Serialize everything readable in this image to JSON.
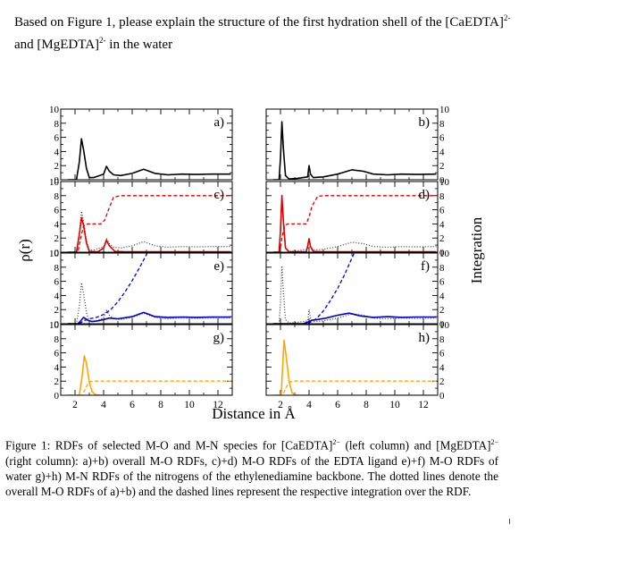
{
  "question": {
    "prefix": "Based on Figure 1, please  explain the structure of the first hydration shell of the [CaEDTA]",
    "charge1": "2-",
    "middle": "and [MgEDTA]",
    "charge2": "2-",
    "suffix": " in the water"
  },
  "caption": {
    "part1": "Figure 1:  RDFs of selected M-O and M-N species for [CaEDTA]",
    "charge1": "2−",
    "part2": " (left column) and [MgEDTA]",
    "charge2": "2−",
    "part3": " (right column): a)+b) overall M-O RDFs, c)+d) M-O RDFs of the EDTA ligand e)+f) M-O RDFs of water g)+h) M-N RDFs of the nitrogens of the ethylenediamine backbone. The dotted lines denote the overall M-O RDFs of a)+b) and the dashed lines represent the respective integration over the RDF."
  },
  "chart_data": {
    "type": "line",
    "title": "",
    "xlabel": "Distance in Å",
    "ylabel_left": "ρ(r)",
    "ylabel_right": "Integration",
    "xlim": [
      1,
      13
    ],
    "ylim": [
      0,
      10
    ],
    "x_ticks": [
      "2",
      "4",
      "6",
      "8",
      "10",
      "12"
    ],
    "y_ticks": [
      "0",
      "2",
      "4",
      "6",
      "8",
      "10"
    ],
    "colors": {
      "black": "#000000",
      "red": "#dd0000",
      "blue": "#0000cc",
      "orange": "#ffa500",
      "dotted": "#444444"
    },
    "panels": [
      {
        "label": "a)",
        "column": "[CaEDTA]2−",
        "series": [
          {
            "name": "overall M-O RDF",
            "style": "solid",
            "color": "#000000",
            "x": [
              1.5,
              2.1,
              2.3,
              2.45,
              2.6,
              2.8,
              3.0,
              3.3,
              3.6,
              4.0,
              4.2,
              4.4,
              4.7,
              5.2,
              6.0,
              6.8,
              7.6,
              8.5,
              9.5,
              10.5,
              11.5,
              12.9
            ],
            "y": [
              0,
              0,
              2.5,
              5.8,
              4.2,
              1.6,
              0.3,
              0.3,
              0.5,
              0.8,
              1.9,
              1.2,
              0.7,
              0.6,
              0.9,
              1.5,
              0.9,
              0.7,
              0.8,
              0.75,
              0.8,
              0.8
            ]
          }
        ]
      },
      {
        "label": "b)",
        "column": "[MgEDTA]2−",
        "series": [
          {
            "name": "overall M-O RDF",
            "style": "solid",
            "color": "#000000",
            "x": [
              1.5,
              1.9,
              2.0,
              2.1,
              2.2,
              2.35,
              2.6,
              3.2,
              3.9,
              4.0,
              4.1,
              4.3,
              5.0,
              6.0,
              7.0,
              7.8,
              8.5,
              9.5,
              10.5,
              11.5,
              12.9
            ],
            "y": [
              0,
              0,
              3,
              8.2,
              4.5,
              0.6,
              0.1,
              0.2,
              0.4,
              2.0,
              0.8,
              0.3,
              0.4,
              0.8,
              1.4,
              1.2,
              0.8,
              0.7,
              0.8,
              0.75,
              0.8
            ]
          }
        ]
      },
      {
        "label": "c)",
        "column": "[CaEDTA]2−",
        "series": [
          {
            "name": "EDTA M-O RDF",
            "style": "solid",
            "color": "#dd0000",
            "x": [
              1.5,
              2.1,
              2.3,
              2.45,
              2.6,
              2.8,
              3.0,
              3.6,
              4.0,
              4.2,
              4.4,
              4.8,
              5.5,
              7,
              9,
              12.9
            ],
            "y": [
              0,
              0,
              2.5,
              4.9,
              3.8,
              1.3,
              0.1,
              0.05,
              0.6,
              1.7,
              0.9,
              0.1,
              0.05,
              0.05,
              0.05,
              0.05
            ]
          },
          {
            "name": "overall M-O RDF",
            "style": "dotted",
            "color": "#444444",
            "x": [
              1.5,
              2.1,
              2.3,
              2.45,
              2.6,
              2.8,
              3.0,
              3.3,
              3.6,
              4.0,
              4.2,
              4.4,
              4.7,
              5.2,
              6.0,
              6.8,
              7.6,
              8.5,
              9.5,
              10.5,
              11.5,
              12.9
            ],
            "y": [
              0,
              0,
              2.5,
              5.8,
              4.2,
              1.6,
              0.3,
              0.3,
              0.5,
              0.8,
              1.9,
              1.2,
              0.7,
              0.6,
              0.9,
              1.5,
              0.9,
              0.7,
              0.8,
              0.75,
              0.8,
              0.8
            ]
          },
          {
            "name": "integration",
            "style": "dashed",
            "color": "#dd0000",
            "x": [
              1.5,
              2.2,
              2.4,
              2.6,
              2.9,
              3.2,
              3.8,
              4.1,
              4.3,
              4.7,
              5.2,
              12.9
            ],
            "y": [
              0,
              0,
              2.0,
              3.8,
              4.0,
              4.0,
              4.0,
              4.6,
              5.8,
              7.8,
              8.0,
              8.0
            ]
          }
        ]
      },
      {
        "label": "d)",
        "column": "[MgEDTA]2−",
        "series": [
          {
            "name": "EDTA M-O RDF",
            "style": "solid",
            "color": "#dd0000",
            "x": [
              1.5,
              1.9,
              2.0,
              2.1,
              2.2,
              2.35,
              2.6,
              3.8,
              3.9,
              4.0,
              4.1,
              4.3,
              5.0,
              12.9
            ],
            "y": [
              0,
              0,
              3,
              8.0,
              4.5,
              0.6,
              0.05,
              0.05,
              0.8,
              1.9,
              0.8,
              0.1,
              0.05,
              0.05
            ]
          },
          {
            "name": "overall M-O RDF",
            "style": "dotted",
            "color": "#444444",
            "x": [
              1.5,
              1.9,
              2.0,
              2.1,
              2.2,
              2.35,
              2.6,
              3.2,
              3.9,
              4.0,
              4.1,
              4.3,
              5.0,
              6.0,
              7.0,
              7.8,
              8.5,
              9.5,
              10.5,
              11.5,
              12.9
            ],
            "y": [
              0,
              0,
              3,
              8.2,
              4.5,
              0.6,
              0.1,
              0.2,
              0.4,
              2.0,
              0.8,
              0.3,
              0.4,
              0.8,
              1.4,
              1.2,
              0.8,
              0.7,
              0.8,
              0.75,
              0.8
            ]
          },
          {
            "name": "integration",
            "style": "dashed",
            "color": "#dd0000",
            "x": [
              1.5,
              1.95,
              2.1,
              2.3,
              2.5,
              3.8,
              4.0,
              4.2,
              4.6,
              5.0,
              12.9
            ],
            "y": [
              0,
              0,
              2.0,
              3.8,
              4.0,
              4.0,
              5.0,
              6.5,
              7.9,
              8.0,
              8.0
            ]
          }
        ]
      },
      {
        "label": "e)",
        "column": "[CaEDTA]2−",
        "series": [
          {
            "name": "water M-O RDF",
            "style": "solid",
            "color": "#0000cc",
            "x": [
              1.5,
              2.2,
              2.4,
              2.6,
              2.9,
              3.2,
              3.6,
              4.0,
              4.4,
              5.0,
              6.0,
              6.8,
              7.6,
              8.5,
              9.5,
              10.5,
              11.5,
              12.9
            ],
            "y": [
              0,
              0,
              0.4,
              0.9,
              0.5,
              0.3,
              0.4,
              0.6,
              0.8,
              0.7,
              1.0,
              1.6,
              1.0,
              0.9,
              0.95,
              0.9,
              0.95,
              0.95
            ]
          },
          {
            "name": "overall M-O RDF",
            "style": "dotted",
            "color": "#444444",
            "x": [
              1.5,
              2.1,
              2.3,
              2.45,
              2.6,
              2.8,
              3.0,
              3.3,
              3.6,
              4.0,
              4.2,
              4.4,
              4.7,
              5.2,
              6.0,
              6.8,
              7.6,
              8.5,
              9.5,
              10.5,
              11.5,
              12.9
            ],
            "y": [
              0,
              0,
              2.5,
              5.8,
              4.2,
              1.6,
              0.3,
              0.3,
              0.5,
              0.8,
              1.9,
              1.2,
              0.7,
              0.6,
              0.9,
              1.5,
              0.9,
              0.7,
              0.8,
              0.75,
              0.8,
              0.8
            ]
          },
          {
            "name": "integration",
            "style": "dashed",
            "color": "#0000cc",
            "x": [
              1.5,
              2.3,
              2.6,
              3.0,
              3.5,
              4.0,
              4.5,
              5.0,
              5.5,
              6.0,
              6.5,
              7.0,
              7.2
            ],
            "y": [
              0,
              0,
              0.4,
              0.7,
              0.9,
              1.3,
              2.0,
              3.1,
              4.5,
              6.1,
              7.9,
              9.8,
              10.6
            ]
          }
        ]
      },
      {
        "label": "f)",
        "column": "[MgEDTA]2−",
        "series": [
          {
            "name": "water M-O RDF",
            "style": "solid",
            "color": "#0000cc",
            "x": [
              1.5,
              3.6,
              4.0,
              4.2,
              4.6,
              5.2,
              6.0,
              6.8,
              7.6,
              8.5,
              9.5,
              10.5,
              11.5,
              12.9
            ],
            "y": [
              0,
              0,
              0.3,
              0.5,
              0.6,
              0.8,
              1.2,
              1.5,
              1.1,
              0.9,
              1.0,
              0.9,
              0.95,
              0.95
            ]
          },
          {
            "name": "overall M-O RDF",
            "style": "dotted",
            "color": "#444444",
            "x": [
              1.5,
              1.9,
              2.0,
              2.1,
              2.2,
              2.35,
              2.6,
              3.2,
              3.9,
              4.0,
              4.1,
              4.3,
              5.0,
              6.0,
              7.0,
              7.8,
              8.5,
              9.5,
              10.5,
              11.5,
              12.9
            ],
            "y": [
              0,
              0,
              3,
              8.2,
              4.5,
              0.6,
              0.1,
              0.2,
              0.4,
              2.0,
              0.8,
              0.3,
              0.4,
              0.8,
              1.4,
              1.2,
              0.8,
              0.7,
              0.8,
              0.75,
              0.8
            ]
          },
          {
            "name": "integration",
            "style": "dashed",
            "color": "#0000cc",
            "x": [
              1.5,
              3.6,
              4.0,
              4.5,
              5.0,
              5.5,
              6.0,
              6.5,
              7.0,
              7.3
            ],
            "y": [
              0,
              0,
              0.1,
              0.7,
              1.8,
              3.3,
              5.0,
              7.0,
              9.3,
              10.6
            ]
          }
        ]
      },
      {
        "label": "g)",
        "column": "[CaEDTA]2−",
        "series": [
          {
            "name": "M-N RDF",
            "style": "solid",
            "color": "#ffa500",
            "x": [
              1.5,
              2.3,
              2.5,
              2.65,
              2.8,
              3.0,
              3.2,
              3.4,
              3.7,
              4.2,
              12.9
            ],
            "y": [
              0,
              0,
              2.8,
              5.6,
              4.5,
              1.8,
              0.5,
              0.1,
              0,
              0,
              0
            ]
          },
          {
            "name": "integration",
            "style": "dashed",
            "color": "#ffa500",
            "x": [
              1.5,
              2.5,
              2.7,
              2.9,
              3.1,
              3.3,
              12.9
            ],
            "y": [
              0,
              0,
              0.8,
              1.6,
              1.95,
              2.0,
              2.0
            ]
          }
        ]
      },
      {
        "label": "h)",
        "column": "[MgEDTA]2−",
        "series": [
          {
            "name": "M-N RDF",
            "style": "solid",
            "color": "#ffa500",
            "x": [
              1.5,
              2.05,
              2.15,
              2.25,
              2.4,
              2.6,
              2.8,
              3.0,
              3.3,
              12.9
            ],
            "y": [
              0,
              0,
              4.0,
              7.8,
              5.5,
              2.0,
              0.4,
              0.05,
              0,
              0
            ]
          },
          {
            "name": "integration",
            "style": "dashed",
            "color": "#ffa500",
            "x": [
              1.5,
              2.15,
              2.35,
              2.55,
              2.75,
              2.95,
              12.9
            ],
            "y": [
              0,
              0,
              0.9,
              1.7,
              1.95,
              2.0,
              2.0
            ]
          }
        ]
      }
    ]
  }
}
